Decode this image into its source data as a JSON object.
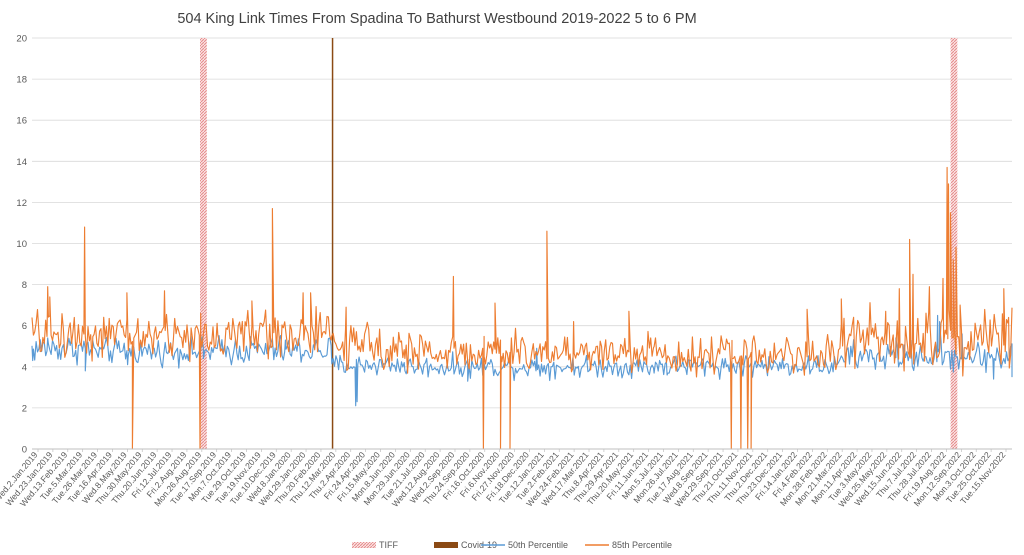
{
  "chart_data": {
    "type": "line",
    "title": "504 King Link Times From Spadina To Bathurst Westbound 2019-2022 5 to 6 PM",
    "xlabel": "",
    "ylabel": "",
    "ylim": [
      0,
      20
    ],
    "yticks": [
      0,
      2,
      4,
      6,
      8,
      10,
      12,
      14,
      16,
      18,
      20
    ],
    "grid": "horizontal",
    "legend": "bottom",
    "x_range": [
      "2019-01-02",
      "2022-12-07"
    ],
    "x_tick_labels": [
      "Wed.2.Jan.2019",
      "Wed.23.Jan.2019",
      "Wed.13.Feb.2019",
      "Tue.5.Mar.2019",
      "Tue.26.Mar.2019",
      "Tue.16.Apr.2019",
      "Wed.8.May.2019",
      "Thu.30.May.2019",
      "Thu.20.Jun.2019",
      "Fri.12.Jul.2019",
      "Fri.2.Aug.2019",
      "Mon.26.Aug.2019",
      "Tue.17.Sep.2019",
      "Mon.7.Oct.2019",
      "Tue.29.Oct.2019",
      "Tue.19.Nov.2019",
      "Tue.10.Dec.2019",
      "Wed.8.Jan.2020",
      "Wed.29.Jan.2020",
      "Thu.20.Feb.2020",
      "Thu.12.Mar.2020",
      "Thu.2.Apr.2020",
      "Fri.24.Apr.2020",
      "Fri.15.May.2020",
      "Mon.8.Jun.2020",
      "Mon.29.Jun.2020",
      "Tue.21.Jul.2020",
      "Wed.12.Aug.2020",
      "Wed.2.Sep.2020",
      "Thu.24.Sep.2020",
      "Fri.16.Oct.2020",
      "Fri.6.Nov.2020",
      "Fri.27.Nov.2020",
      "Fri.18.Dec.2020",
      "Tue.12.Jan.2021",
      "Tue.2.Feb.2021",
      "Wed.24.Feb.2021",
      "Wed.17.Mar.2021",
      "Thu.8.Apr.2021",
      "Thu.29.Apr.2021",
      "Thu.20.May.2021",
      "Fri.11.Jun.2021",
      "Mon.5.Jul.2021",
      "Mon.26.Jul.2021",
      "Tue.17.Aug.2021",
      "Wed.8.Sep.2021",
      "Wed.29.Sep.2021",
      "Thu.21.Oct.2021",
      "Thu.11.Nov.2021",
      "Thu.2.Dec.2021",
      "Thu.23.Dec.2021",
      "Fri.14.Jan.2022",
      "Fri.4.Feb.2022",
      "Mon.28.Feb.2022",
      "Mon.21.Mar.2022",
      "Mon.11.Apr.2022",
      "Tue.3.May.2022",
      "Wed.25.May.2022",
      "Wed.15.Jun.2022",
      "Thu.7.Jul.2022",
      "Thu.28.Jul.2022",
      "Fri.19.Aug.2022",
      "Mon.12.Sep.2022",
      "Mon.3.Oct.2022",
      "Tue.25.Oct.2022",
      "Tue.15.Nov.2022"
    ],
    "markers": [
      {
        "name": "TIFF",
        "x_start": "2019-09-05",
        "x_end": "2019-09-15",
        "color": "#f2b8b8",
        "style": "hatched"
      },
      {
        "name": "Covid-19",
        "x_start": "2020-03-16",
        "x_end": "2020-03-18",
        "color": "#8b4a14",
        "style": "solid"
      },
      {
        "name": "TIFF",
        "x_start": "2022-09-08",
        "x_end": "2022-09-18",
        "color": "#f2b8b8",
        "style": "hatched"
      }
    ],
    "series": [
      {
        "name": "50th Percentile",
        "color": "#5b9bd5",
        "segments": [
          {
            "x_start": "2019-01-02",
            "x_end": "2019-03-31",
            "base": 4.9,
            "noise": 0.35
          },
          {
            "x_start": "2019-04-01",
            "x_end": "2019-09-30",
            "base": 4.75,
            "noise": 0.3
          },
          {
            "x_start": "2019-10-01",
            "x_end": "2020-03-15",
            "base": 4.8,
            "noise": 0.35
          },
          {
            "x_start": "2020-03-16",
            "x_end": "2020-06-30",
            "base": 4.1,
            "noise": 0.25
          },
          {
            "x_start": "2020-07-01",
            "x_end": "2021-06-30",
            "base": 4.0,
            "noise": 0.25
          },
          {
            "x_start": "2021-07-01",
            "x_end": "2022-03-31",
            "base": 4.05,
            "noise": 0.25
          },
          {
            "x_start": "2022-04-01",
            "x_end": "2022-12-07",
            "base": 4.5,
            "noise": 0.35
          }
        ],
        "points": [
          {
            "x": "2019-01-03",
            "y": 4.3
          },
          {
            "x": "2019-01-25",
            "y": 5.4
          },
          {
            "x": "2019-03-21",
            "y": 3.8
          },
          {
            "x": "2019-05-22",
            "y": 4.1
          },
          {
            "x": "2019-09-10",
            "y": 4.4
          },
          {
            "x": "2020-01-08",
            "y": 5.3
          },
          {
            "x": "2020-04-20",
            "y": 2.1
          },
          {
            "x": "2020-04-22",
            "y": 2.3
          },
          {
            "x": "2020-10-01",
            "y": 3.3
          },
          {
            "x": "2021-01-10",
            "y": 4.9
          },
          {
            "x": "2021-07-20",
            "y": 3.6
          },
          {
            "x": "2022-06-20",
            "y": 5.4
          },
          {
            "x": "2022-08-20",
            "y": 6.5
          },
          {
            "x": "2022-08-23",
            "y": 6.2
          },
          {
            "x": "2022-09-25",
            "y": 5.6
          },
          {
            "x": "2022-11-10",
            "y": 3.4
          },
          {
            "x": "2022-12-07",
            "y": 3.5
          }
        ]
      },
      {
        "name": "85th Percentile",
        "color": "#ed7d31",
        "segments": [
          {
            "x_start": "2019-01-02",
            "x_end": "2019-03-31",
            "base": 5.6,
            "noise": 0.55
          },
          {
            "x_start": "2019-04-01",
            "x_end": "2019-09-30",
            "base": 5.5,
            "noise": 0.55
          },
          {
            "x_start": "2019-10-01",
            "x_end": "2020-03-15",
            "base": 5.6,
            "noise": 0.6
          },
          {
            "x_start": "2020-03-16",
            "x_end": "2020-06-30",
            "base": 5.0,
            "noise": 0.5
          },
          {
            "x_start": "2020-07-01",
            "x_end": "2021-06-30",
            "base": 4.7,
            "noise": 0.45
          },
          {
            "x_start": "2021-07-01",
            "x_end": "2022-03-31",
            "base": 4.6,
            "noise": 0.45
          },
          {
            "x_start": "2022-04-01",
            "x_end": "2022-12-07",
            "base": 5.4,
            "noise": 0.7
          }
        ],
        "points": [
          {
            "x": "2019-01-25",
            "y": 7.9
          },
          {
            "x": "2019-01-28",
            "y": 7.4
          },
          {
            "x": "2019-03-20",
            "y": 10.8
          },
          {
            "x": "2019-05-21",
            "y": 7.6
          },
          {
            "x": "2019-05-29",
            "y": 0.0
          },
          {
            "x": "2019-07-15",
            "y": 7.7
          },
          {
            "x": "2019-09-05",
            "y": 0.0
          },
          {
            "x": "2019-09-06",
            "y": 5.4
          },
          {
            "x": "2019-11-20",
            "y": 7.2
          },
          {
            "x": "2019-12-20",
            "y": 11.7
          },
          {
            "x": "2020-02-03",
            "y": 7.6
          },
          {
            "x": "2020-02-14",
            "y": 7.6
          },
          {
            "x": "2020-04-06",
            "y": 6.9
          },
          {
            "x": "2020-09-10",
            "y": 8.4
          },
          {
            "x": "2020-10-24",
            "y": 0.0
          },
          {
            "x": "2020-10-25",
            "y": 4.5
          },
          {
            "x": "2020-11-10",
            "y": 7.1
          },
          {
            "x": "2020-11-18",
            "y": 0.0
          },
          {
            "x": "2020-11-19",
            "y": 4.5
          },
          {
            "x": "2020-12-02",
            "y": 0.0
          },
          {
            "x": "2020-12-03",
            "y": 4.6
          },
          {
            "x": "2021-01-25",
            "y": 10.6
          },
          {
            "x": "2021-03-05",
            "y": 6.2
          },
          {
            "x": "2021-05-25",
            "y": 6.7
          },
          {
            "x": "2021-10-22",
            "y": 0.0
          },
          {
            "x": "2021-10-23",
            "y": 4.4
          },
          {
            "x": "2021-11-05",
            "y": 0.0
          },
          {
            "x": "2021-11-06",
            "y": 4.5
          },
          {
            "x": "2021-11-15",
            "y": 0.0
          },
          {
            "x": "2021-11-16",
            "y": 4.4
          },
          {
            "x": "2021-11-20",
            "y": 0.0
          },
          {
            "x": "2021-11-21",
            "y": 4.6
          },
          {
            "x": "2022-02-10",
            "y": 6.8
          },
          {
            "x": "2022-04-01",
            "y": 7.3
          },
          {
            "x": "2022-06-05",
            "y": 6.7
          },
          {
            "x": "2022-06-25",
            "y": 7.8
          },
          {
            "x": "2022-07-10",
            "y": 10.2
          },
          {
            "x": "2022-07-15",
            "y": 8.5
          },
          {
            "x": "2022-08-08",
            "y": 7.9
          },
          {
            "x": "2022-08-28",
            "y": 8.3
          },
          {
            "x": "2022-09-03",
            "y": 13.7
          },
          {
            "x": "2022-09-05",
            "y": 12.9
          },
          {
            "x": "2022-09-08",
            "y": 11.5
          },
          {
            "x": "2022-09-12",
            "y": 9.2
          },
          {
            "x": "2022-09-16",
            "y": 9.8
          },
          {
            "x": "2022-09-22",
            "y": 7.0
          },
          {
            "x": "2022-10-05",
            "y": 4.8
          },
          {
            "x": "2022-11-25",
            "y": 7.8
          },
          {
            "x": "2022-12-02",
            "y": 6.4
          }
        ]
      }
    ],
    "legend_entries": [
      {
        "label": "TIFF",
        "color": "#f2b8b8",
        "style": "hatched"
      },
      {
        "label": "Covid-19",
        "color": "#8b4a14",
        "style": "solid"
      },
      {
        "label": "50th Percentile",
        "color": "#5b9bd5",
        "style": "line"
      },
      {
        "label": "85th Percentile",
        "color": "#ed7d31",
        "style": "line"
      }
    ]
  }
}
